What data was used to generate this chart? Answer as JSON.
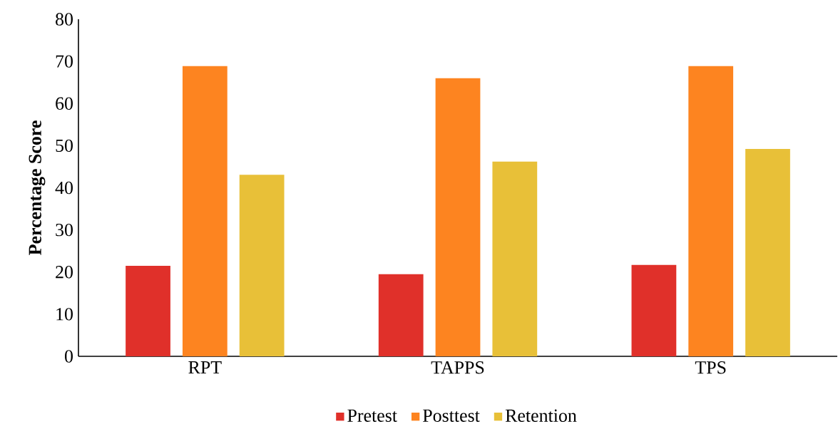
{
  "chart_data": {
    "type": "bar",
    "ylabel": "Percentage Score",
    "categories": [
      "RPT",
      "TAPPS",
      "TPS"
    ],
    "series": [
      {
        "name": "Pretest",
        "color": "#e0302a",
        "values": [
          21.5,
          19.5,
          21.7
        ]
      },
      {
        "name": "Posttest",
        "color": "#fd8420",
        "values": [
          68.9,
          66.0,
          68.9
        ]
      },
      {
        "name": "Retention",
        "color": "#e8c038",
        "values": [
          43.1,
          46.2,
          49.2
        ]
      }
    ],
    "ylim": [
      0,
      80
    ],
    "yticks": [
      0,
      10,
      20,
      30,
      40,
      50,
      60,
      70,
      80
    ],
    "grid": false,
    "legend": "bottom"
  }
}
